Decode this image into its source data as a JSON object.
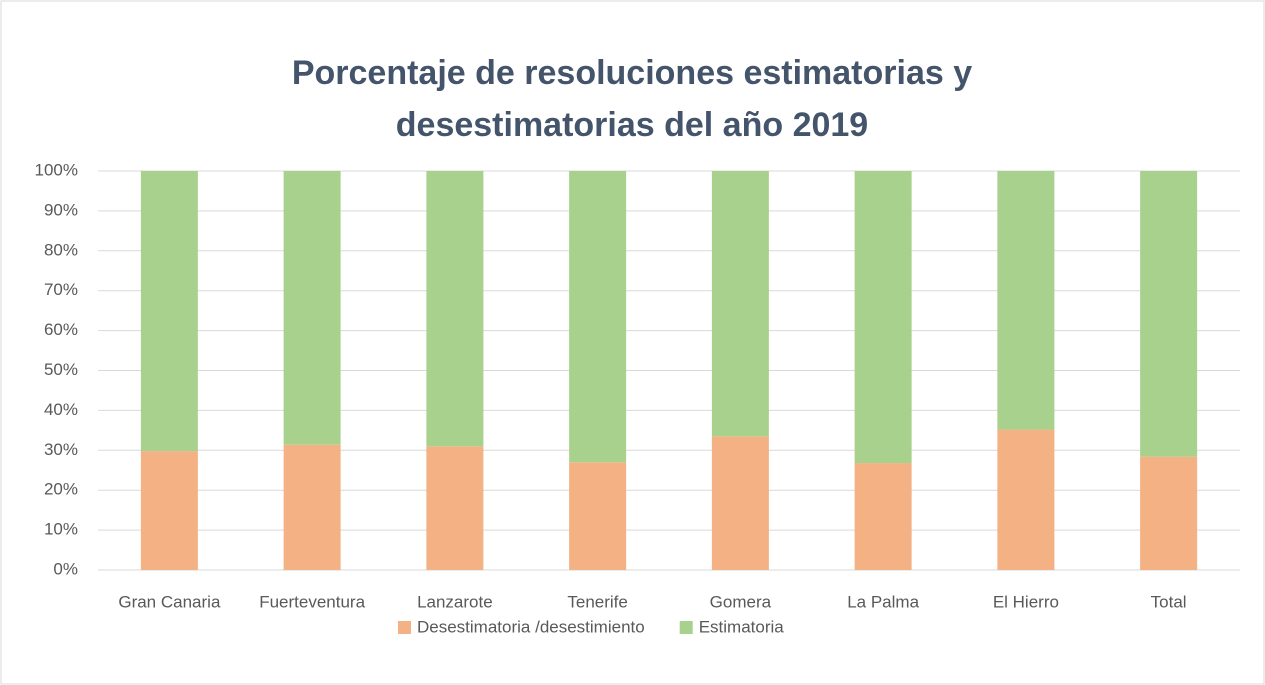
{
  "chart_data": {
    "type": "stacked_bar",
    "title": [
      "Porcentaje de resoluciones estimatorias y",
      "desestimatorias del año 2019"
    ],
    "categories": [
      "Gran Canaria",
      "Fuerteventura",
      "Lanzarote",
      "Tenerife",
      "Gomera",
      "La Palma",
      "El Hierro",
      "Total"
    ],
    "series": [
      {
        "name": "Desestimatoria /desestimiento",
        "color": "#f4b183",
        "values": [
          29.8,
          31.4,
          31.0,
          27.0,
          33.5,
          26.8,
          35.2,
          28.4
        ]
      },
      {
        "name": "Estimatoria",
        "color": "#a9d18e",
        "values": [
          70.2,
          68.6,
          69.0,
          73.0,
          66.5,
          73.2,
          64.8,
          71.6
        ]
      }
    ],
    "ylim": [
      0,
      100
    ],
    "yticks": [
      {
        "value": 0,
        "label": "0%"
      },
      {
        "value": 10,
        "label": "10%"
      },
      {
        "value": 20,
        "label": "20%"
      },
      {
        "value": 30,
        "label": "30%"
      },
      {
        "value": 40,
        "label": "40%"
      },
      {
        "value": 50,
        "label": "50%"
      },
      {
        "value": 60,
        "label": "60%"
      },
      {
        "value": 70,
        "label": "70%"
      },
      {
        "value": 80,
        "label": "80%"
      },
      {
        "value": 90,
        "label": "90%"
      },
      {
        "value": 100,
        "label": "100%"
      }
    ],
    "grid": true,
    "legend": "bottom"
  }
}
